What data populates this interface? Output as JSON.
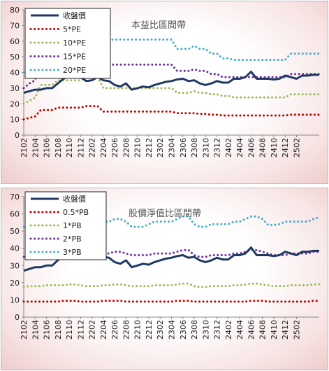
{
  "chart_data": [
    {
      "type": "line",
      "title": "本益比區間帶",
      "xlabel": "",
      "ylabel": "",
      "ylim": [
        0,
        80
      ],
      "yticks": [
        0,
        10,
        20,
        30,
        40,
        50,
        60,
        70,
        80
      ],
      "xtick_labels": [
        "2102",
        "2104",
        "2106",
        "2108",
        "2110",
        "2112",
        "2202",
        "2204",
        "2206",
        "2208",
        "2210",
        "2212",
        "2302",
        "2304",
        "2306",
        "2308",
        "2310",
        "2312",
        "2402",
        "2404",
        "2406",
        "2408",
        "2410",
        "2412",
        "2502"
      ],
      "grid": false,
      "legend_position": "top-left",
      "series": [
        {
          "name": "收盤價",
          "style": "solid",
          "color": "#1f3864",
          "values": [
            27,
            28,
            29,
            29,
            30,
            30,
            33,
            36,
            37.5,
            39,
            37,
            34.5,
            35,
            37,
            35,
            34.5,
            32,
            31,
            33,
            29,
            30,
            31,
            30.5,
            32,
            33,
            34,
            34.5,
            35.5,
            36,
            34.5,
            35,
            33,
            32,
            33,
            34.5,
            33.5,
            33.5,
            36,
            36,
            37,
            40.5,
            36,
            36,
            36,
            35.5,
            36,
            38,
            37,
            36,
            38,
            38,
            38.5,
            38.5
          ]
        },
        {
          "name": "5*PE",
          "style": "dotted",
          "color": "#c00000",
          "values": [
            10,
            11,
            12,
            16,
            16,
            16,
            17.5,
            17.5,
            17.5,
            17.5,
            17.5,
            18.5,
            18.5,
            18.5,
            15,
            15,
            15,
            15,
            15,
            15,
            15,
            15,
            15,
            15,
            15,
            15,
            15,
            14,
            14,
            14,
            14,
            13.5,
            13.5,
            13,
            13,
            12.5,
            12.5,
            12.5,
            12.5,
            12.5,
            12.5,
            12.5,
            12.5,
            12.5,
            12.5,
            12.5,
            12.5,
            13,
            13,
            13,
            13,
            13,
            13
          ]
        },
        {
          "name": "10*PE",
          "style": "dotted",
          "color": "#9bbb59",
          "values": [
            20,
            22,
            24,
            32,
            32,
            32,
            35,
            35,
            35,
            35,
            35,
            37,
            37,
            37,
            30,
            30,
            30,
            30,
            30,
            30,
            30,
            30,
            30,
            30,
            30,
            30,
            30,
            27,
            27,
            27,
            28,
            27,
            27,
            26,
            26,
            25,
            25,
            24,
            24,
            24,
            24,
            24,
            24,
            24,
            24,
            24,
            24,
            26,
            26,
            26,
            26,
            26,
            26
          ]
        },
        {
          "name": "15*PE",
          "style": "dotted",
          "color": "#7030a0",
          "values": [
            30,
            33,
            35,
            48,
            48,
            48,
            52,
            52,
            52,
            52,
            52,
            56,
            56,
            56,
            45,
            45,
            45,
            45,
            45,
            45,
            45,
            45,
            45,
            45,
            45,
            45,
            45,
            41,
            41,
            41,
            42,
            41,
            41,
            39,
            39,
            37,
            37,
            37,
            37,
            37,
            37,
            37,
            37,
            37,
            37,
            37,
            37,
            39,
            39,
            39,
            39,
            39,
            39
          ]
        },
        {
          "name": "20*PE",
          "style": "dotted",
          "color": "#4bacc6",
          "values": [
            40,
            44,
            47,
            64,
            64,
            64,
            70,
            70,
            70,
            70,
            70,
            75,
            75,
            75,
            61,
            61,
            61,
            61,
            61,
            61,
            61,
            61,
            61,
            61,
            61,
            61,
            61,
            55,
            55,
            55,
            57,
            55,
            55,
            52,
            52,
            49,
            49,
            48,
            48,
            48,
            48,
            48,
            48,
            48,
            48,
            48,
            48,
            52,
            52,
            52,
            52,
            52,
            52
          ]
        }
      ]
    },
    {
      "type": "line",
      "title": "股價淨值比區間帶",
      "xlabel": "",
      "ylabel": "",
      "ylim": [
        0,
        70
      ],
      "yticks": [
        0,
        10,
        20,
        30,
        40,
        50,
        60,
        70
      ],
      "xtick_labels": [
        "2102",
        "2104",
        "2106",
        "2108",
        "2110",
        "2112",
        "2202",
        "2204",
        "2206",
        "2208",
        "2210",
        "2212",
        "2302",
        "2304",
        "2306",
        "2308",
        "2310",
        "2312",
        "2402",
        "2404",
        "2406",
        "2408",
        "2410",
        "2412",
        "2502"
      ],
      "grid": false,
      "legend_position": "top-left",
      "series": [
        {
          "name": "收盤價",
          "style": "solid",
          "color": "#1f3864",
          "values": [
            27,
            28,
            29,
            29,
            30,
            30,
            33,
            36,
            37.5,
            39,
            37,
            34.5,
            35,
            37,
            35,
            34.5,
            32,
            31,
            33,
            29,
            30,
            31,
            30.5,
            32,
            33,
            34,
            34.5,
            35.5,
            36,
            34.5,
            35,
            33,
            32,
            33,
            34.5,
            33.5,
            33.5,
            36,
            36,
            37,
            40.5,
            36,
            36,
            36,
            35.5,
            36,
            38,
            37,
            36,
            38,
            38,
            38.5,
            38.5
          ]
        },
        {
          "name": "0.5*PB",
          "style": "dotted",
          "color": "#c00000",
          "values": [
            9,
            9,
            9,
            9,
            9,
            9,
            9,
            9.5,
            9.5,
            9.5,
            9,
            9,
            9,
            9,
            9.5,
            9.5,
            9.5,
            9.5,
            9,
            9,
            9,
            9,
            9,
            9,
            9,
            9,
            9,
            9.5,
            9.5,
            9.5,
            9,
            9,
            9,
            9,
            9,
            9,
            9,
            9,
            9,
            9,
            9.5,
            9.5,
            9.5,
            9,
            9,
            9,
            9,
            9,
            9,
            9,
            9,
            9.5,
            9.5
          ]
        },
        {
          "name": "1*PB",
          "style": "dotted",
          "color": "#9bbb59",
          "values": [
            17.5,
            18,
            18,
            18,
            18.5,
            18.5,
            18.5,
            18.5,
            19,
            19,
            18.5,
            18,
            18,
            18,
            18.5,
            18.5,
            19,
            19,
            18.5,
            18,
            18,
            18,
            18,
            18.5,
            18.5,
            18.5,
            18.5,
            19,
            19.5,
            19.5,
            18,
            17.5,
            17.5,
            18,
            18,
            18,
            18,
            18.5,
            18.5,
            19,
            19.5,
            19.5,
            19,
            18.5,
            18,
            18,
            18,
            18.5,
            18.5,
            18.5,
            18.5,
            19,
            19
          ]
        },
        {
          "name": "2*PB",
          "style": "dotted",
          "color": "#7030a0",
          "values": [
            35,
            36,
            36,
            36,
            37,
            37,
            37,
            37,
            38,
            38,
            37,
            36,
            36,
            36,
            37,
            37,
            38,
            38,
            37,
            36,
            36,
            36,
            36,
            37,
            37,
            37,
            37,
            38,
            39,
            39,
            36,
            35,
            35,
            36,
            36,
            36,
            36,
            37,
            37,
            38,
            39,
            39,
            38,
            37,
            36,
            36,
            36,
            37,
            37,
            37,
            37,
            38,
            38
          ]
        },
        {
          "name": "3*PB",
          "style": "dotted",
          "color": "#4bacc6",
          "values": [
            52.5,
            54,
            54,
            54,
            55.5,
            55.5,
            55.5,
            55.5,
            57,
            57,
            55.5,
            54,
            54,
            54,
            55.5,
            55.5,
            57,
            57,
            55.5,
            52.5,
            52.5,
            52.5,
            54,
            55.5,
            55.5,
            55.5,
            55.5,
            57,
            58.5,
            58.5,
            54,
            52.5,
            52.5,
            54,
            54,
            54,
            54,
            55.5,
            55.5,
            57,
            58.5,
            58.5,
            57,
            53.5,
            53.5,
            54,
            55.5,
            55.5,
            55.5,
            55.5,
            55.5,
            57,
            58
          ]
        }
      ]
    }
  ]
}
